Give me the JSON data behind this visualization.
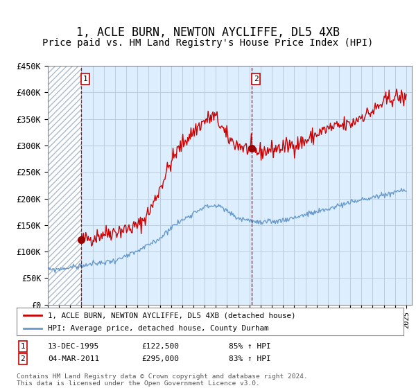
{
  "title": "1, ACLE BURN, NEWTON AYCLIFFE, DL5 4XB",
  "subtitle": "Price paid vs. HM Land Registry's House Price Index (HPI)",
  "ylim": [
    0,
    450000
  ],
  "yticks": [
    0,
    50000,
    100000,
    150000,
    200000,
    250000,
    300000,
    350000,
    400000,
    450000
  ],
  "ytick_labels": [
    "£0",
    "£50K",
    "£100K",
    "£150K",
    "£200K",
    "£250K",
    "£300K",
    "£350K",
    "£400K",
    "£450K"
  ],
  "xlim_start": 1993.0,
  "xlim_end": 2025.5,
  "marker1_x": 1995.95,
  "marker1_y": 122500,
  "marker2_x": 2011.17,
  "marker2_y": 295000,
  "legend_line1": "1, ACLE BURN, NEWTON AYCLIFFE, DL5 4XB (detached house)",
  "legend_line2": "HPI: Average price, detached house, County Durham",
  "ann1_label": "1",
  "ann1_date": "13-DEC-1995",
  "ann1_price": "£122,500",
  "ann1_hpi": "85% ↑ HPI",
  "ann2_label": "2",
  "ann2_date": "04-MAR-2011",
  "ann2_price": "£295,000",
  "ann2_hpi": "83% ↑ HPI",
  "footer": "Contains HM Land Registry data © Crown copyright and database right 2024.\nThis data is licensed under the Open Government Licence v3.0.",
  "line_color_red": "#cc0000",
  "line_color_blue": "#6699cc",
  "bg_color": "#ddeeff",
  "grid_color": "#bbccdd",
  "title_fontsize": 12,
  "subtitle_fontsize": 10,
  "red_key_x": [
    1995.95,
    1997,
    1998,
    1999,
    2000,
    2001,
    2002,
    2003,
    2004,
    2005,
    2006,
    2007,
    2007.8,
    2008.5,
    2009,
    2010,
    2011.17,
    2012,
    2013,
    2014,
    2015,
    2016,
    2017,
    2018,
    2019,
    2020,
    2021,
    2022,
    2023,
    2024,
    2025
  ],
  "red_key_y": [
    122500,
    127000,
    133000,
    138000,
    143000,
    150000,
    175000,
    220000,
    270000,
    305000,
    330000,
    350000,
    358000,
    340000,
    320000,
    305000,
    295000,
    290000,
    295000,
    300000,
    305000,
    312000,
    325000,
    335000,
    340000,
    345000,
    360000,
    370000,
    385000,
    395000,
    390000
  ],
  "blue_key_x": [
    1993,
    1994,
    1995,
    1996,
    1997,
    1998,
    1999,
    2000,
    2001,
    2002,
    2003,
    2004,
    2005,
    2006,
    2007,
    2008,
    2009,
    2010,
    2011,
    2012,
    2013,
    2014,
    2015,
    2016,
    2017,
    2018,
    2019,
    2020,
    2021,
    2022,
    2023,
    2024,
    2025
  ],
  "blue_key_y": [
    65000,
    67000,
    70000,
    73000,
    76000,
    79000,
    83000,
    90000,
    100000,
    112000,
    125000,
    145000,
    158000,
    172000,
    183000,
    185000,
    175000,
    162000,
    158000,
    153000,
    155000,
    158000,
    163000,
    168000,
    172000,
    178000,
    185000,
    190000,
    195000,
    200000,
    205000,
    210000,
    215000
  ]
}
